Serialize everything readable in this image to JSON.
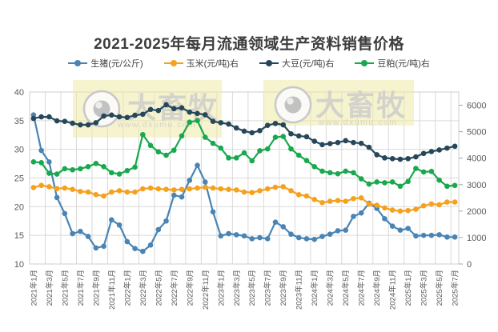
{
  "title": "2021-2025年每月流通领域生产资料销售价格",
  "watermarks": [
    {
      "brand": "大畜牧",
      "url": "www.dxumu.com"
    },
    {
      "brand": "大畜牧",
      "url": "www.dxumu.com"
    }
  ],
  "chart_data": {
    "type": "line",
    "title": "2021-2025年每月流通领域生产资料销售价格",
    "x_label_step": 2,
    "grid": true,
    "legend_position": "top",
    "left_axis": {
      "min": 10,
      "max": 40,
      "ticks": [
        10,
        15,
        20,
        25,
        30,
        35,
        40
      ]
    },
    "right_axis": {
      "min": 0,
      "max": 6500,
      "ticks": [
        0,
        1000,
        2000,
        3000,
        4000,
        5000,
        6000
      ]
    },
    "x": [
      "2021年1月",
      "2021年2月",
      "2021年3月",
      "2021年4月",
      "2021年5月",
      "2021年6月",
      "2021年7月",
      "2021年8月",
      "2021年9月",
      "2021年10月",
      "2021年11月",
      "2021年12月",
      "2022年1月",
      "2022年2月",
      "2022年3月",
      "2022年4月",
      "2022年5月",
      "2022年6月",
      "2022年7月",
      "2022年8月",
      "2022年9月",
      "2022年10月",
      "2022年11月",
      "2022年12月",
      "2023年1月",
      "2023年2月",
      "2023年3月",
      "2023年4月",
      "2023年5月",
      "2023年6月",
      "2023年7月",
      "2023年8月",
      "2023年9月",
      "2023年10月",
      "2023年11月",
      "2023年12月",
      "2024年1月",
      "2024年2月",
      "2024年3月",
      "2024年4月",
      "2024年5月",
      "2024年6月",
      "2024年7月",
      "2024年8月",
      "2024年9月",
      "2024年10月",
      "2024年11月",
      "2024年12月",
      "2025年1月",
      "2025年2月",
      "2025年3月",
      "2025年4月",
      "2025年5月",
      "2025年6月",
      "2025年7月"
    ],
    "series": [
      {
        "name": "生猪(元/公斤)",
        "key": "pig",
        "axis": "left",
        "color": "#4984B4",
        "values": [
          36.0,
          29.8,
          27.8,
          21.6,
          18.8,
          15.3,
          15.7,
          14.8,
          12.8,
          13.1,
          17.7,
          16.8,
          13.9,
          12.7,
          12.2,
          13.3,
          16.0,
          17.5,
          22.0,
          21.7,
          24.6,
          27.2,
          24.3,
          19.1,
          14.9,
          15.3,
          15.1,
          14.9,
          14.4,
          14.6,
          14.4,
          17.3,
          16.5,
          15.2,
          14.6,
          14.4,
          14.3,
          14.8,
          15.2,
          15.8,
          15.9,
          18.3,
          18.9,
          20.6,
          19.7,
          17.9,
          16.6,
          15.9,
          16.2,
          14.9,
          15.0,
          15.0,
          15.1,
          14.7,
          14.7
        ]
      },
      {
        "name": "玉米(元/吨)右",
        "key": "corn",
        "axis": "right",
        "color": "#F5A11D",
        "values": [
          2890,
          2970,
          2920,
          2850,
          2870,
          2820,
          2740,
          2720,
          2620,
          2570,
          2720,
          2770,
          2720,
          2720,
          2840,
          2870,
          2840,
          2820,
          2800,
          2820,
          2840,
          2870,
          2900,
          2870,
          2840,
          2820,
          2800,
          2720,
          2700,
          2770,
          2840,
          2900,
          2920,
          2770,
          2620,
          2570,
          2440,
          2320,
          2370,
          2400,
          2370,
          2470,
          2500,
          2270,
          2220,
          2120,
          2040,
          2000,
          2020,
          2070,
          2200,
          2270,
          2240,
          2340,
          2340
        ]
      },
      {
        "name": "大豆(元/吨)右",
        "key": "soybean",
        "axis": "right",
        "color": "#26475A",
        "values": [
          5500,
          5560,
          5560,
          5410,
          5390,
          5320,
          5260,
          5260,
          5340,
          5590,
          5630,
          5560,
          5540,
          5620,
          5660,
          5840,
          5800,
          6020,
          5870,
          5900,
          5740,
          5690,
          5640,
          5390,
          5340,
          5290,
          5140,
          5020,
          4960,
          5040,
          5240,
          5310,
          5260,
          4920,
          4840,
          4810,
          4640,
          4510,
          4550,
          4590,
          4660,
          4590,
          4560,
          4410,
          4130,
          4010,
          3980,
          3960,
          3980,
          4050,
          4180,
          4250,
          4310,
          4380,
          4450
        ]
      },
      {
        "name": "豆粕(元/吨)右",
        "key": "soybean-meal",
        "axis": "right",
        "color": "#19A84E",
        "values": [
          3860,
          3830,
          3430,
          3400,
          3600,
          3560,
          3600,
          3680,
          3800,
          3680,
          3450,
          3400,
          3530,
          3660,
          4890,
          4480,
          4240,
          4110,
          4300,
          4840,
          5360,
          5420,
          4790,
          4560,
          4380,
          4010,
          4010,
          4200,
          3900,
          4280,
          4350,
          4790,
          4820,
          4350,
          4110,
          3910,
          3680,
          3510,
          3450,
          3410,
          3510,
          3450,
          3220,
          3020,
          3100,
          3070,
          3100,
          2940,
          3120,
          3610,
          3480,
          3500,
          3170,
          2940,
          2970
        ]
      }
    ]
  }
}
